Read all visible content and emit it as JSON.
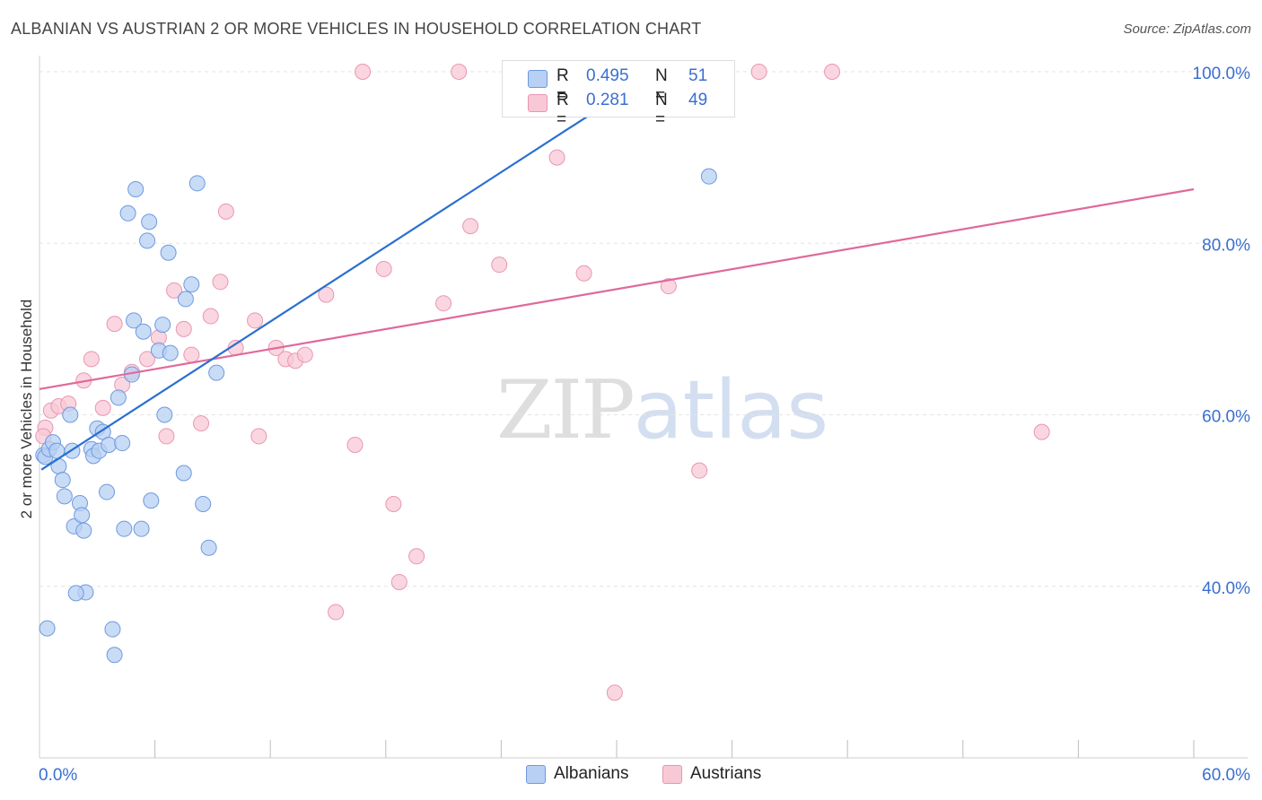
{
  "title": "ALBANIAN VS AUSTRIAN 2 OR MORE VEHICLES IN HOUSEHOLD CORRELATION CHART",
  "source": "Source: ZipAtlas.com",
  "watermark": {
    "zip": "ZIP",
    "atlas": "atlas"
  },
  "legend_top": [
    {
      "r_label": "R =",
      "r_value": "0.495",
      "n_label": "N =",
      "n_value": "51"
    },
    {
      "r_label": "R =",
      "r_value": "0.281",
      "n_label": "N =",
      "n_value": "49"
    }
  ],
  "legend_bottom": [
    {
      "label": "Albanians"
    },
    {
      "label": "Austrians"
    }
  ],
  "chart_data": {
    "type": "scatter",
    "title": "ALBANIAN VS AUSTRIAN 2 OR MORE VEHICLES IN HOUSEHOLD CORRELATION CHART",
    "ylabel": "2 or more Vehicles in Household",
    "xlabel": "",
    "xlim": [
      0,
      60
    ],
    "ylim": [
      20,
      100
    ],
    "x_tick_labels": [
      {
        "value": 0,
        "label": "0.0%"
      },
      {
        "value": 60,
        "label": "60.0%"
      }
    ],
    "y_tick_labels": [
      {
        "value": 40,
        "label": "40.0%"
      },
      {
        "value": 60,
        "label": "60.0%"
      },
      {
        "value": 80,
        "label": "80.0%"
      },
      {
        "value": 100,
        "label": "100.0%"
      }
    ],
    "x_minor_ticks": [
      6,
      12,
      18,
      24,
      30,
      36,
      42,
      48,
      54
    ],
    "grid": true,
    "colors": {
      "albanians_fill": "#b7d0f3",
      "albanians_stroke": "#6e99df",
      "albanians_line": "#2a6fd1",
      "austrians_fill": "#f8c8d6",
      "austrians_stroke": "#e996b2",
      "austrians_line": "#e0699a",
      "accent_text": "#3a6fd1"
    },
    "series": [
      {
        "name": "Albanians",
        "r": 0.495,
        "n": 51,
        "trend": {
          "x0": 0.1,
          "y0": 53.6,
          "x1": 32.0,
          "y1": 99.9
        },
        "points": [
          [
            0.2,
            55.3
          ],
          [
            0.3,
            55.1
          ],
          [
            0.5,
            56.0
          ],
          [
            0.7,
            56.8
          ],
          [
            0.9,
            55.8
          ],
          [
            1.0,
            54.0
          ],
          [
            1.2,
            52.4
          ],
          [
            1.3,
            50.5
          ],
          [
            1.6,
            60.0
          ],
          [
            1.7,
            55.8
          ],
          [
            1.8,
            47.0
          ],
          [
            2.1,
            49.7
          ],
          [
            2.2,
            48.3
          ],
          [
            2.3,
            46.5
          ],
          [
            2.4,
            39.3
          ],
          [
            2.7,
            56.0
          ],
          [
            2.8,
            55.2
          ],
          [
            3.0,
            58.4
          ],
          [
            3.1,
            55.8
          ],
          [
            3.3,
            58.0
          ],
          [
            3.5,
            51.0
          ],
          [
            3.6,
            56.5
          ],
          [
            3.8,
            35.0
          ],
          [
            3.9,
            32.0
          ],
          [
            4.1,
            62.0
          ],
          [
            4.3,
            56.7
          ],
          [
            4.4,
            46.7
          ],
          [
            4.6,
            83.5
          ],
          [
            4.8,
            64.7
          ],
          [
            4.9,
            71.0
          ],
          [
            5.0,
            86.3
          ],
          [
            5.3,
            46.7
          ],
          [
            5.4,
            69.7
          ],
          [
            5.6,
            80.3
          ],
          [
            5.7,
            82.5
          ],
          [
            5.8,
            50.0
          ],
          [
            6.2,
            67.5
          ],
          [
            6.4,
            70.5
          ],
          [
            6.5,
            60.0
          ],
          [
            6.7,
            78.9
          ],
          [
            6.8,
            67.2
          ],
          [
            7.5,
            53.2
          ],
          [
            7.6,
            73.5
          ],
          [
            7.9,
            75.2
          ],
          [
            8.2,
            87.0
          ],
          [
            8.5,
            49.6
          ],
          [
            8.8,
            44.5
          ],
          [
            9.2,
            64.9
          ],
          [
            34.8,
            87.8
          ],
          [
            0.4,
            35.1
          ],
          [
            1.9,
            39.2
          ]
        ]
      },
      {
        "name": "Austrians",
        "r": 0.281,
        "n": 49,
        "trend": {
          "x0": 0.0,
          "y0": 63.0,
          "x1": 60.0,
          "y1": 86.3
        },
        "points": [
          [
            0.3,
            58.5
          ],
          [
            0.6,
            60.5
          ],
          [
            1.0,
            61.0
          ],
          [
            1.5,
            61.3
          ],
          [
            2.3,
            64.0
          ],
          [
            2.7,
            66.5
          ],
          [
            3.3,
            60.8
          ],
          [
            3.9,
            70.6
          ],
          [
            4.3,
            63.5
          ],
          [
            4.8,
            65.0
          ],
          [
            5.6,
            66.5
          ],
          [
            6.2,
            69.0
          ],
          [
            6.6,
            57.5
          ],
          [
            7.0,
            74.5
          ],
          [
            7.5,
            70.0
          ],
          [
            7.9,
            67.0
          ],
          [
            8.4,
            59.0
          ],
          [
            8.9,
            71.5
          ],
          [
            9.4,
            75.5
          ],
          [
            9.7,
            83.7
          ],
          [
            10.2,
            67.8
          ],
          [
            11.2,
            71.0
          ],
          [
            11.4,
            57.5
          ],
          [
            12.3,
            67.8
          ],
          [
            12.8,
            66.5
          ],
          [
            13.3,
            66.3
          ],
          [
            13.8,
            67.0
          ],
          [
            14.9,
            74.0
          ],
          [
            15.4,
            37.0
          ],
          [
            16.4,
            56.5
          ],
          [
            16.8,
            100.0
          ],
          [
            17.9,
            77.0
          ],
          [
            18.4,
            49.6
          ],
          [
            18.7,
            40.5
          ],
          [
            19.6,
            43.5
          ],
          [
            21.0,
            73.0
          ],
          [
            21.8,
            100.0
          ],
          [
            22.4,
            82.0
          ],
          [
            23.9,
            77.5
          ],
          [
            26.9,
            90.0
          ],
          [
            28.3,
            76.5
          ],
          [
            29.1,
            100.0
          ],
          [
            29.9,
            27.6
          ],
          [
            32.7,
            75.0
          ],
          [
            34.3,
            53.5
          ],
          [
            37.4,
            100.0
          ],
          [
            41.2,
            100.0
          ],
          [
            52.1,
            58.0
          ],
          [
            0.2,
            57.5
          ]
        ]
      }
    ]
  }
}
